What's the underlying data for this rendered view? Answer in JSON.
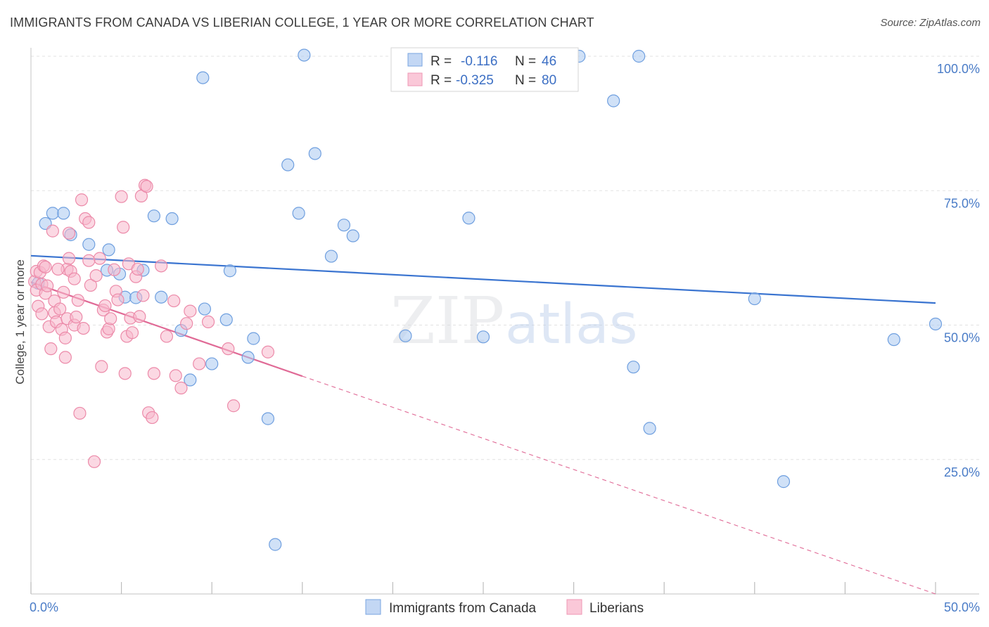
{
  "title": "IMMIGRANTS FROM CANADA VS LIBERIAN COLLEGE, 1 YEAR OR MORE CORRELATION CHART",
  "source": "Source: ZipAtlas.com",
  "watermark": {
    "zip": "ZIP",
    "atlas": "atlas"
  },
  "chart_data": {
    "type": "scatter",
    "ylabel": "College, 1 year or more",
    "xlim": [
      0,
      50
    ],
    "ylim": [
      0,
      100
    ],
    "x_ticks": [
      {
        "value": 0,
        "label": "0.0%"
      },
      {
        "value": 50,
        "label": "50.0%"
      }
    ],
    "y_ticks": [
      {
        "value": 25,
        "label": "25.0%"
      },
      {
        "value": 50,
        "label": "50.0%"
      },
      {
        "value": 75,
        "label": "75.0%"
      },
      {
        "value": 100,
        "label": "100.0%"
      }
    ],
    "x_minor_ticks": [
      0,
      5,
      10,
      15,
      20,
      25,
      30,
      35,
      40,
      45,
      50
    ],
    "grid": true,
    "legend_position": "bottom-center",
    "stats_box": [
      {
        "r_label": "R =",
        "r_value": "-0.116",
        "n_label": "N =",
        "n_value": "46"
      },
      {
        "r_label": "R =",
        "r_value": "-0.325",
        "n_label": "N =",
        "n_value": "80"
      }
    ],
    "series": [
      {
        "name": "Immigrants from Canada",
        "color": "#a9c8f0",
        "stroke": "#6f9fdf",
        "line_color": "#3a74d0",
        "trend": {
          "x0": 0,
          "y0": 62.9,
          "x1": 50,
          "y1": 54.1
        },
        "points": [
          [
            0.4,
            57.8
          ],
          [
            0.8,
            68.9
          ],
          [
            1.2,
            70.8
          ],
          [
            1.8,
            70.8
          ],
          [
            2.2,
            66.8
          ],
          [
            3.2,
            65.0
          ],
          [
            4.2,
            60.2
          ],
          [
            4.3,
            64.0
          ],
          [
            4.9,
            59.5
          ],
          [
            5.2,
            55.2
          ],
          [
            5.8,
            55.1
          ],
          [
            6.2,
            60.2
          ],
          [
            6.8,
            70.3
          ],
          [
            7.2,
            55.2
          ],
          [
            7.8,
            69.8
          ],
          [
            8.3,
            49.0
          ],
          [
            8.8,
            39.8
          ],
          [
            9.5,
            96.0
          ],
          [
            9.6,
            53.0
          ],
          [
            10.0,
            42.8
          ],
          [
            10.8,
            51.0
          ],
          [
            11.0,
            60.1
          ],
          [
            12.0,
            44.0
          ],
          [
            12.3,
            47.5
          ],
          [
            13.1,
            32.6
          ],
          [
            13.5,
            9.2
          ],
          [
            14.2,
            79.8
          ],
          [
            14.8,
            70.8
          ],
          [
            15.1,
            100.2
          ],
          [
            15.7,
            81.9
          ],
          [
            16.6,
            62.8
          ],
          [
            17.3,
            68.6
          ],
          [
            17.8,
            66.6
          ],
          [
            20.7,
            48.0
          ],
          [
            24.2,
            69.9
          ],
          [
            25.0,
            47.8
          ],
          [
            29.2,
            100.0
          ],
          [
            32.2,
            91.7
          ],
          [
            33.3,
            42.2
          ],
          [
            33.6,
            100.0
          ],
          [
            34.2,
            30.8
          ],
          [
            40.0,
            54.9
          ],
          [
            41.6,
            20.9
          ],
          [
            47.7,
            47.3
          ],
          [
            50.0,
            50.2
          ],
          [
            30.3,
            100.0
          ]
        ]
      },
      {
        "name": "Liberians",
        "color": "#f7b8cc",
        "stroke": "#ec8aa9",
        "line_color": "#e06a96",
        "trend": {
          "x0": 0,
          "y0": 58.0,
          "x1": 15,
          "y1": 40.5
        },
        "trend_dashed": {
          "x0": 15,
          "y0": 40.5,
          "x1": 50,
          "y1": 0.0
        },
        "points": [
          [
            0.2,
            58.1
          ],
          [
            0.3,
            60.0
          ],
          [
            0.3,
            56.5
          ],
          [
            0.4,
            53.5
          ],
          [
            0.5,
            59.8
          ],
          [
            0.6,
            57.6
          ],
          [
            0.7,
            61.0
          ],
          [
            0.8,
            60.8
          ],
          [
            0.8,
            55.9
          ],
          [
            0.9,
            57.3
          ],
          [
            1.0,
            49.7
          ],
          [
            1.1,
            45.6
          ],
          [
            1.2,
            67.5
          ],
          [
            1.3,
            52.3
          ],
          [
            1.3,
            54.5
          ],
          [
            1.4,
            50.6
          ],
          [
            1.6,
            53.0
          ],
          [
            1.7,
            49.2
          ],
          [
            1.8,
            56.1
          ],
          [
            1.9,
            47.6
          ],
          [
            2.0,
            51.2
          ],
          [
            2.0,
            60.4
          ],
          [
            2.1,
            62.4
          ],
          [
            2.1,
            67.1
          ],
          [
            2.2,
            60.0
          ],
          [
            2.4,
            50.0
          ],
          [
            2.5,
            51.5
          ],
          [
            2.6,
            54.6
          ],
          [
            2.7,
            33.6
          ],
          [
            2.8,
            73.3
          ],
          [
            2.9,
            49.4
          ],
          [
            3.0,
            69.8
          ],
          [
            3.2,
            69.1
          ],
          [
            3.3,
            57.4
          ],
          [
            3.5,
            24.6
          ],
          [
            3.6,
            59.2
          ],
          [
            3.8,
            62.4
          ],
          [
            3.9,
            42.3
          ],
          [
            4.0,
            52.8
          ],
          [
            4.1,
            53.6
          ],
          [
            4.2,
            48.7
          ],
          [
            4.3,
            49.3
          ],
          [
            4.4,
            51.2
          ],
          [
            4.7,
            56.3
          ],
          [
            4.8,
            54.7
          ],
          [
            5.0,
            73.9
          ],
          [
            5.1,
            68.2
          ],
          [
            5.2,
            41.0
          ],
          [
            5.3,
            47.9
          ],
          [
            5.4,
            61.4
          ],
          [
            5.5,
            51.3
          ],
          [
            5.6,
            48.6
          ],
          [
            5.8,
            59.0
          ],
          [
            5.9,
            60.4
          ],
          [
            6.0,
            51.6
          ],
          [
            6.1,
            74.0
          ],
          [
            6.2,
            55.5
          ],
          [
            6.3,
            76.0
          ],
          [
            6.4,
            75.8
          ],
          [
            6.5,
            33.7
          ],
          [
            6.7,
            32.8
          ],
          [
            6.8,
            41.0
          ],
          [
            7.2,
            61.0
          ],
          [
            7.5,
            47.9
          ],
          [
            7.9,
            54.5
          ],
          [
            8.0,
            40.6
          ],
          [
            8.3,
            38.3
          ],
          [
            8.6,
            50.3
          ],
          [
            8.8,
            52.6
          ],
          [
            9.3,
            42.8
          ],
          [
            9.8,
            50.6
          ],
          [
            10.9,
            45.6
          ],
          [
            11.2,
            35.0
          ],
          [
            13.1,
            45.0
          ],
          [
            1.5,
            60.4
          ],
          [
            0.6,
            52.1
          ],
          [
            2.4,
            58.6
          ],
          [
            3.2,
            62.0
          ],
          [
            1.9,
            44.0
          ],
          [
            4.6,
            60.3
          ]
        ]
      }
    ]
  }
}
